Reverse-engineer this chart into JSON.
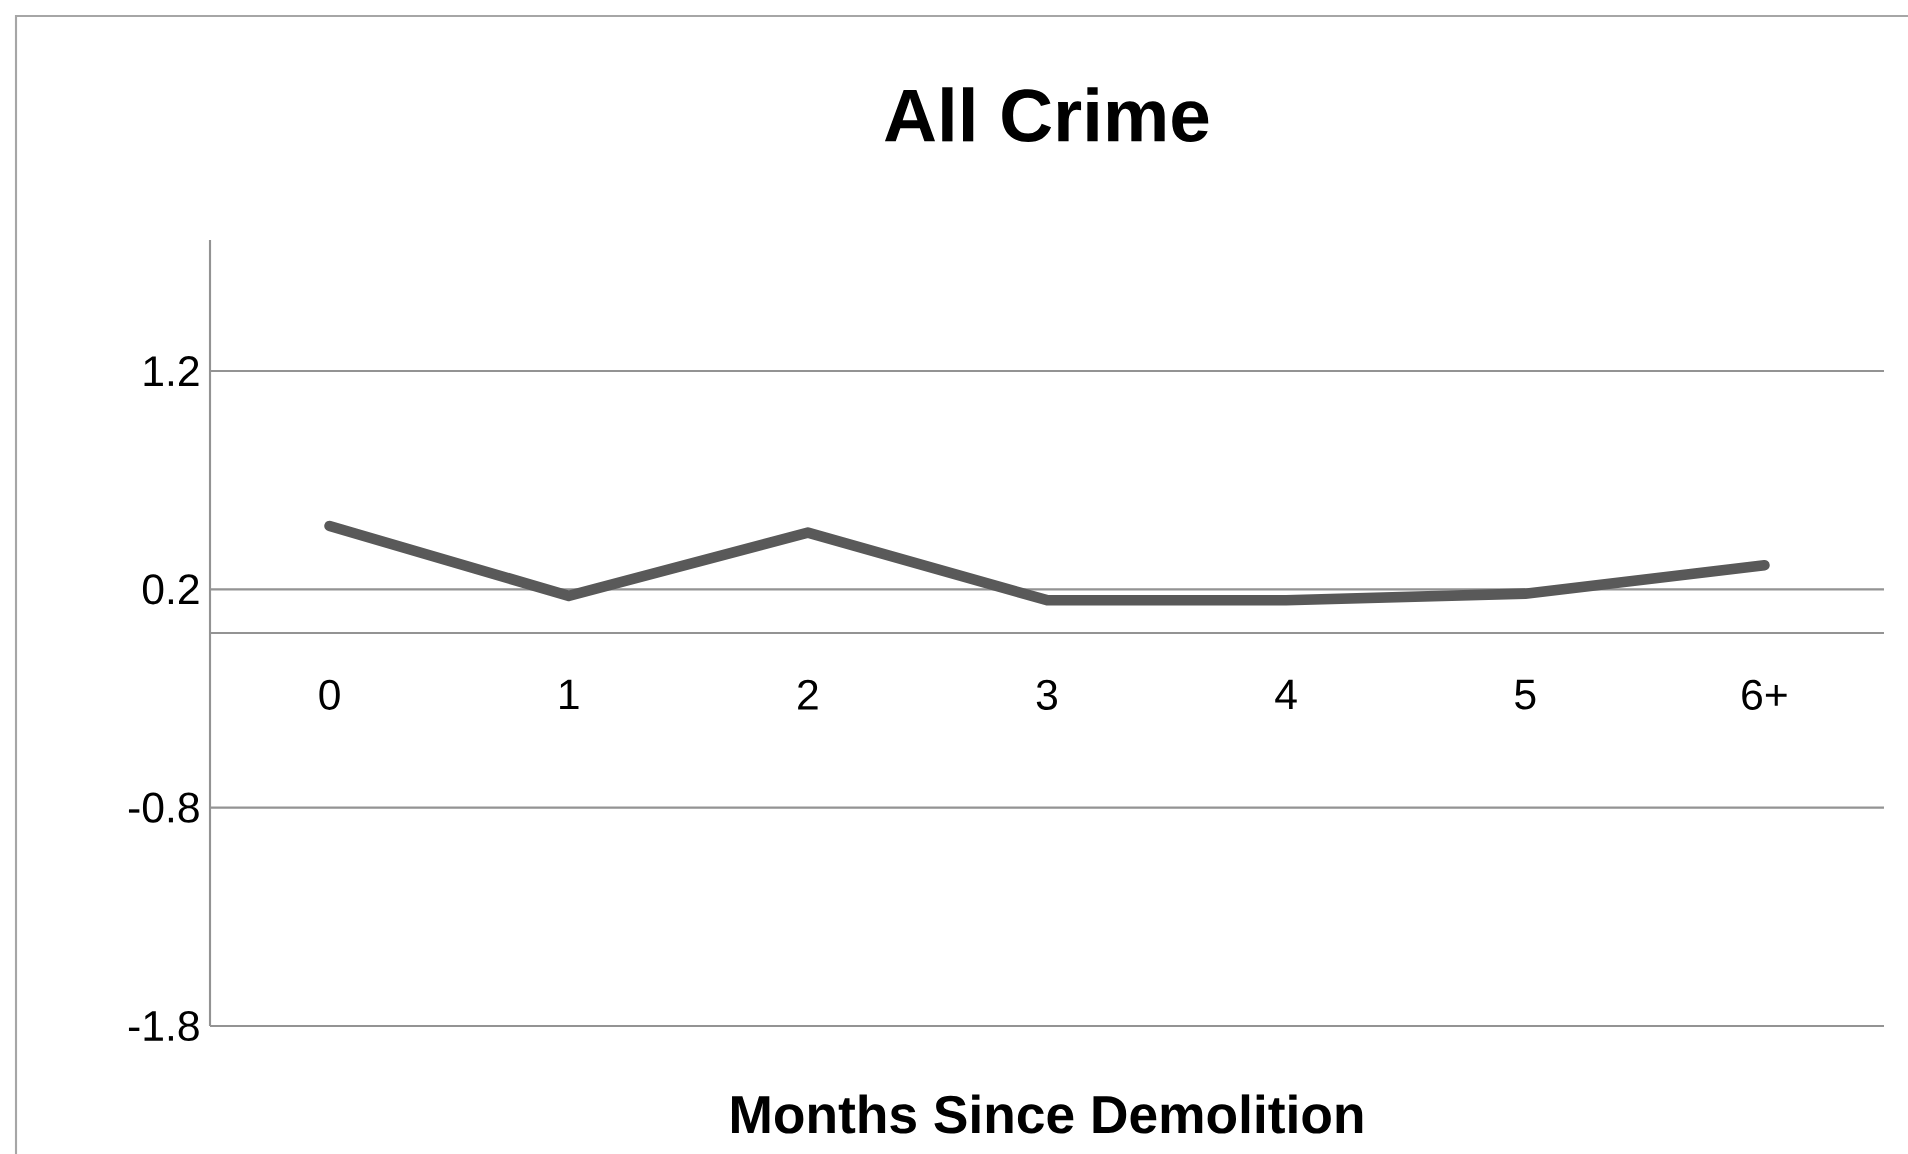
{
  "chart_data": {
    "type": "line",
    "title": "All Crime",
    "xlabel": "Months Since Demolition",
    "categories": [
      "0",
      "1",
      "2",
      "3",
      "4",
      "5",
      "6+"
    ],
    "series": [
      {
        "color": "#595959",
        "values": [
          0.49,
          0.17,
          0.46,
          0.15,
          0.15,
          0.18,
          0.31
        ]
      }
    ],
    "ylim": [
      -1.8,
      1.8
    ],
    "yticks": [
      -1.8,
      -0.8,
      0.2,
      1.2
    ],
    "grid": "y",
    "marker": "none",
    "line_style": "solid"
  }
}
